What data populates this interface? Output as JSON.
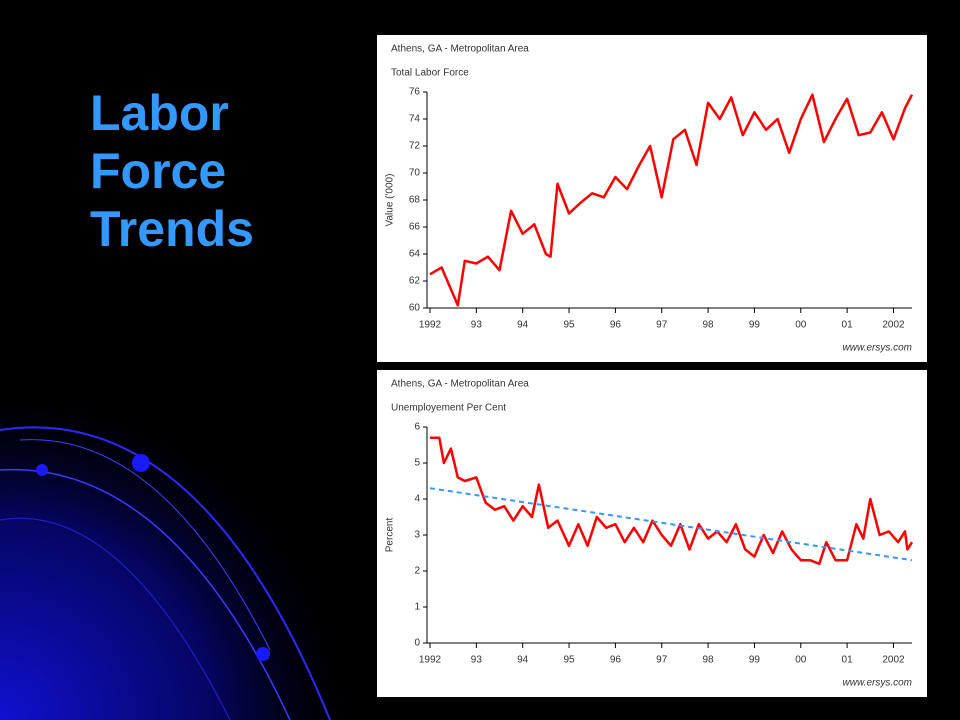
{
  "title": "Labor Force Trends",
  "chart_data": [
    {
      "type": "line",
      "title": "Athens, GA - Metropolitan Area",
      "subtitle": "Total Labor Force",
      "y_label": "Value ('000)",
      "source": "www.ersys.com",
      "xlim": [
        1992,
        2002.4
      ],
      "xticks": [
        {
          "value": 1992,
          "label": "1992"
        },
        {
          "value": 1993,
          "label": "93"
        },
        {
          "value": 1994,
          "label": "94"
        },
        {
          "value": 1995,
          "label": "95"
        },
        {
          "value": 1996,
          "label": "96"
        },
        {
          "value": 1997,
          "label": "97"
        },
        {
          "value": 1998,
          "label": "98"
        },
        {
          "value": 1999,
          "label": "99"
        },
        {
          "value": 2000,
          "label": "00"
        },
        {
          "value": 2001,
          "label": "01"
        },
        {
          "value": 2002,
          "label": "2002"
        }
      ],
      "ylim": [
        60,
        76
      ],
      "yticks": [
        60,
        62,
        64,
        66,
        68,
        70,
        72,
        74,
        76
      ],
      "series": [
        {
          "color": "#ff0000",
          "x": [
            1992.0,
            1992.25,
            1992.5,
            1992.6,
            1992.75,
            1993.0,
            1993.25,
            1993.5,
            1993.75,
            1994.0,
            1994.25,
            1994.5,
            1994.6,
            1994.75,
            1995.0,
            1995.25,
            1995.5,
            1995.75,
            1996.0,
            1996.25,
            1996.5,
            1996.75,
            1997.0,
            1997.25,
            1997.5,
            1997.75,
            1998.0,
            1998.25,
            1998.5,
            1998.75,
            1999.0,
            1999.25,
            1999.5,
            1999.75,
            2000.0,
            2000.25,
            2000.5,
            2000.75,
            2001.0,
            2001.25,
            2001.5,
            2001.75,
            2002.0,
            2002.25,
            2002.4
          ],
          "values": [
            62.5,
            63,
            61,
            60.2,
            63.5,
            63.3,
            63.8,
            62.8,
            67.2,
            65.5,
            66.2,
            64,
            63.8,
            69.2,
            67,
            67.8,
            68.5,
            68.2,
            69.7,
            68.8,
            70.5,
            72,
            68.2,
            72.5,
            73.2,
            70.6,
            75.2,
            74,
            75.6,
            72.8,
            74.5,
            73.2,
            74,
            71.5,
            74,
            75.8,
            72.3,
            74,
            75.5,
            72.8,
            73,
            74.5,
            72.5,
            74.8,
            75.8
          ]
        }
      ]
    },
    {
      "type": "line",
      "title": "Athens, GA - Metropolitan Area",
      "subtitle": "Unemployement Per Cent",
      "y_label": "Percent",
      "source": "www.ersys.com",
      "xlim": [
        1992,
        2002.4
      ],
      "xticks": [
        {
          "value": 1992,
          "label": "1992"
        },
        {
          "value": 1993,
          "label": "93"
        },
        {
          "value": 1994,
          "label": "94"
        },
        {
          "value": 1995,
          "label": "95"
        },
        {
          "value": 1996,
          "label": "96"
        },
        {
          "value": 1997,
          "label": "97"
        },
        {
          "value": 1998,
          "label": "98"
        },
        {
          "value": 1999,
          "label": "99"
        },
        {
          "value": 2000,
          "label": "00"
        },
        {
          "value": 2001,
          "label": "01"
        },
        {
          "value": 2002,
          "label": "2002"
        }
      ],
      "ylim": [
        0,
        6
      ],
      "yticks": [
        0,
        1,
        2,
        3,
        4,
        5,
        6
      ],
      "series": [
        {
          "color": "#ff0000",
          "x": [
            1992,
            1992.2,
            1992.3,
            1992.45,
            1992.6,
            1992.75,
            1993,
            1993.2,
            1993.4,
            1993.6,
            1993.8,
            1994,
            1994.2,
            1994.35,
            1994.55,
            1994.75,
            1995,
            1995.2,
            1995.4,
            1995.6,
            1995.8,
            1996,
            1996.2,
            1996.4,
            1996.6,
            1996.8,
            1997,
            1997.2,
            1997.4,
            1997.6,
            1997.8,
            1998,
            1998.2,
            1998.4,
            1998.6,
            1998.8,
            1999,
            1999.2,
            1999.4,
            1999.6,
            1999.8,
            2000,
            2000.2,
            2000.4,
            2000.55,
            2000.75,
            2001,
            2001.2,
            2001.35,
            2001.5,
            2001.7,
            2001.9,
            2002.1,
            2002.25,
            2002.3,
            2002.4
          ],
          "values": [
            5.7,
            5.7,
            5.0,
            5.4,
            4.6,
            4.5,
            4.6,
            3.9,
            3.7,
            3.8,
            3.4,
            3.8,
            3.5,
            4.4,
            3.2,
            3.4,
            2.7,
            3.3,
            2.7,
            3.5,
            3.2,
            3.3,
            2.8,
            3.2,
            2.8,
            3.4,
            3.0,
            2.7,
            3.3,
            2.6,
            3.3,
            2.9,
            3.1,
            2.8,
            3.3,
            2.6,
            2.4,
            3.0,
            2.5,
            3.1,
            2.6,
            2.3,
            2.3,
            2.2,
            2.8,
            2.3,
            2.3,
            3.3,
            2.9,
            4.0,
            3.0,
            3.1,
            2.8,
            3.1,
            2.6,
            2.8
          ]
        },
        {
          "color": "#3399ff",
          "line_style": "dashed",
          "x": [
            1992,
            2002.4
          ],
          "values": [
            4.3,
            2.3
          ]
        }
      ]
    }
  ]
}
